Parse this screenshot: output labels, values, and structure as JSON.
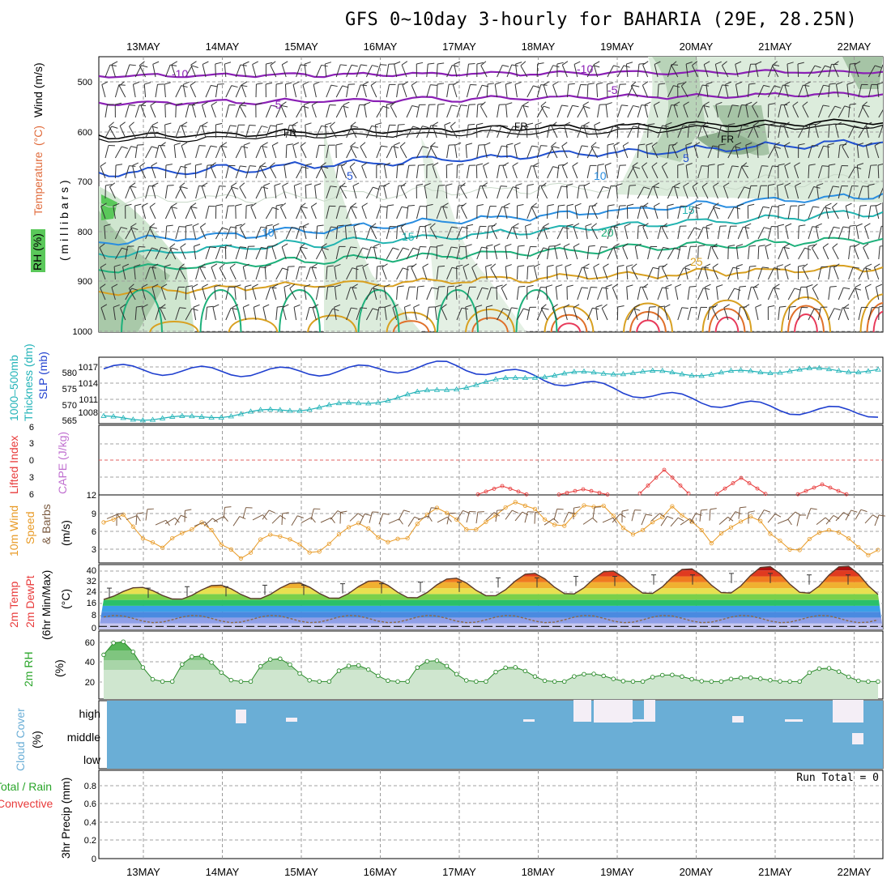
{
  "title": "GFS 0~10day 3-hourly for BAHARIA (29E, 28.25N)",
  "dates": [
    "13MAY",
    "14MAY",
    "15MAY",
    "16MAY",
    "17MAY",
    "18MAY",
    "19MAY",
    "20MAY",
    "21MAY",
    "22MAY"
  ],
  "colors": {
    "grid": "#9a9a9a",
    "slp": "#1f3fcf",
    "thickness": "#22b3b8",
    "wind": "#e89a25",
    "rh": "#2aa52a",
    "cloud": "#6aaed6",
    "li": "#e83a3a",
    "cape": "#c070d0"
  },
  "panels": {
    "upper": {
      "label_rh": "RH (%)",
      "label_temp": "Temperature",
      "label_temp_unit": "(°C)",
      "label_wind": "Wind (m/s)",
      "label_mb": "( m i l l i b a r s )",
      "yticks": [
        "500",
        "600",
        "700",
        "800",
        "900",
        "1000"
      ],
      "contours": [
        {
          "label": "-10",
          "color": "#8a1fb5"
        },
        {
          "label": "-5",
          "color": "#8a1fb5"
        },
        {
          "label": "FR",
          "color": "#000000"
        },
        {
          "label": "5",
          "color": "#2050d0"
        },
        {
          "label": "10",
          "color": "#2a8ee0"
        },
        {
          "label": "15",
          "color": "#21b3b0"
        },
        {
          "label": "20",
          "color": "#1db07a"
        },
        {
          "label": "25",
          "color": "#d8a020"
        }
      ]
    },
    "slp": {
      "label_thick": "1000–500mb",
      "label_thick2": "Thickness (dm)",
      "label_slp": "SLP (mb)",
      "left_ticks": [
        "580",
        "575",
        "570",
        "565"
      ],
      "right_ticks": [
        "1017",
        "1014",
        "1011",
        "1008"
      ]
    },
    "li": {
      "label_li": "Lifted Index",
      "label_cape": "CAPE (J/kg)",
      "yticks": [
        "6",
        "3",
        "0",
        "3",
        "6"
      ]
    },
    "wind10": {
      "label1": "10m Wind",
      "label2": "Speed",
      "label3": "& Barbs",
      "label_unit": "(m/s)",
      "yticks": [
        "12",
        "9",
        "6",
        "3"
      ]
    },
    "temp2m": {
      "label1": "2m Temp",
      "label2": "2m DewPt",
      "label3": "(6hr Min/Max)",
      "label_unit": "(°C)",
      "yticks": [
        "40",
        "32",
        "24",
        "16",
        "8",
        "0"
      ]
    },
    "rh2m": {
      "label": "2m RH",
      "label_unit": "(%)",
      "yticks": [
        "60",
        "40",
        "20"
      ]
    },
    "cloud": {
      "label": "Cloud Cover",
      "label_unit": "(%)",
      "levels": [
        "high",
        "middle",
        "low"
      ]
    },
    "precip": {
      "label_total": "Total / Rain",
      "label_conv": "Convective",
      "label_axis": "3hr Precip (mm)",
      "run_total": "Run Total = 0",
      "yticks": [
        "0.8",
        "0.6",
        "0.4",
        "0.2",
        "0"
      ]
    }
  },
  "chart_data": [
    {
      "type": "line",
      "name": "SLP",
      "title": "SLP (mb)",
      "x": [
        "13MAY",
        "14MAY",
        "15MAY",
        "16MAY",
        "17MAY",
        "18MAY",
        "19MAY",
        "20MAY",
        "21MAY",
        "22MAY"
      ],
      "y": [
        1016.4,
        1016.0,
        1015.8,
        1016.2,
        1017.0,
        1015.0,
        1012.5,
        1010.5,
        1009.0,
        1008.5
      ],
      "ylim": [
        1006.5,
        1018.5
      ]
    },
    {
      "type": "line",
      "name": "Thickness",
      "title": "1000-500mb Thickness (dm)",
      "x": [
        "13MAY",
        "14MAY",
        "15MAY",
        "16MAY",
        "17MAY",
        "18MAY",
        "19MAY",
        "20MAY",
        "21MAY",
        "22MAY"
      ],
      "y": [
        566.0,
        566.0,
        568.0,
        570.0,
        574.0,
        577.5,
        578.5,
        578.0,
        579.0,
        579.0
      ],
      "ylim": [
        564.5,
        582.5
      ]
    },
    {
      "type": "line",
      "name": "10m Wind Speed",
      "title": "10m Wind Speed (m/s)",
      "x": [
        "13MAY",
        "14MAY",
        "15MAY",
        "16MAY",
        "17MAY",
        "18MAY",
        "19MAY",
        "20MAY",
        "21MAY",
        "22MAY"
      ],
      "y": [
        6.5,
        4.5,
        3.0,
        4.5,
        7.5,
        9.0,
        8.0,
        6.5,
        4.5,
        4.0
      ],
      "ylim": [
        0,
        12
      ]
    },
    {
      "type": "line",
      "name": "2m Temperature",
      "title": "2m Temp (°C)",
      "x": [
        "13MAY",
        "14MAY",
        "15MAY",
        "16MAY",
        "17MAY",
        "18MAY",
        "19MAY",
        "20MAY",
        "21MAY",
        "22MAY"
      ],
      "y": [
        22,
        23,
        24,
        25,
        26,
        29,
        30,
        31,
        32,
        31
      ],
      "ylim": [
        -2,
        42
      ]
    },
    {
      "type": "line",
      "name": "2m RH",
      "title": "2m RH (%)",
      "x": [
        "13MAY",
        "14MAY",
        "15MAY",
        "16MAY",
        "17MAY",
        "18MAY",
        "19MAY",
        "20MAY",
        "21MAY",
        "22MAY"
      ],
      "y": [
        60,
        45,
        42,
        35,
        40,
        33,
        26,
        25,
        22,
        32
      ],
      "ylim": [
        0,
        70
      ]
    }
  ]
}
